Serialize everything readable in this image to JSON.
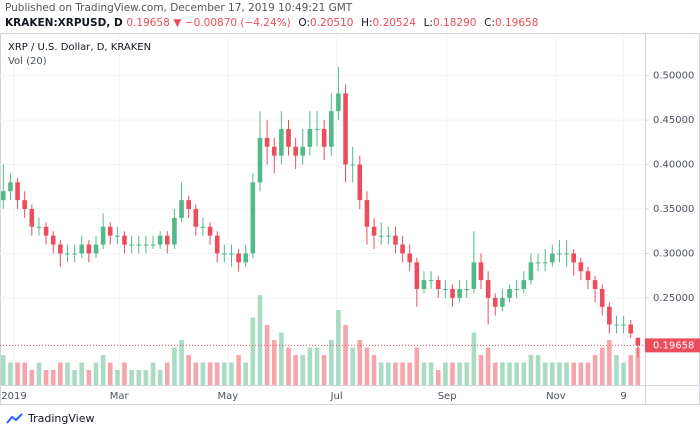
{
  "header": {
    "published": "Published on TradingView.com, December 17, 2019 10:49:21 GMT",
    "symbol": "KRAKEN:XRPUSD, D",
    "price": "0.19658",
    "change": "▼ −0.00870 (−4.24%)",
    "ohlc": [
      {
        "label": "O:",
        "value": "0.20510"
      },
      {
        "label": "H:",
        "value": "0.20524"
      },
      {
        "label": "L:",
        "value": "0.18290"
      },
      {
        "label": "C:",
        "value": "0.19658"
      }
    ]
  },
  "chart_data": {
    "type": "candlestick",
    "title": "XRP / U.S. Dollar, D, KRAKEN",
    "volume_label": "Vol (20)",
    "up_color": "#53b987",
    "down_color": "#eb4d5c",
    "grid": true,
    "ylim": [
      0.152,
      0.548
    ],
    "yticks": [
      {
        "value": 0.25,
        "label": "0.25000"
      },
      {
        "value": 0.3,
        "label": "0.30000"
      },
      {
        "value": 0.35,
        "label": "0.35000"
      },
      {
        "value": 0.4,
        "label": "0.40000"
      },
      {
        "value": 0.45,
        "label": "0.45000"
      },
      {
        "value": 0.5,
        "label": "0.50000"
      }
    ],
    "xticks": [
      {
        "value": 1.5,
        "label": "2019"
      },
      {
        "value": 16.25,
        "label": "Mar"
      },
      {
        "value": 31.5,
        "label": "May"
      },
      {
        "value": 46.75,
        "label": "Jul"
      },
      {
        "value": 62.25,
        "label": "Sep"
      },
      {
        "value": 77.5,
        "label": "Nov"
      },
      {
        "value": 87,
        "label": "9"
      }
    ],
    "last_price": {
      "value": 0.19658,
      "label": "0.19658"
    },
    "open": [
      0.36,
      0.37,
      0.38,
      0.36,
      0.35,
      0.33,
      0.33,
      0.32,
      0.31,
      0.3,
      0.3,
      0.3,
      0.31,
      0.3,
      0.31,
      0.33,
      0.32,
      0.32,
      0.31,
      0.31,
      0.31,
      0.31,
      0.31,
      0.32,
      0.31,
      0.34,
      0.36,
      0.35,
      0.33,
      0.33,
      0.32,
      0.3,
      0.3,
      0.3,
      0.29,
      0.3,
      0.38,
      0.43,
      0.42,
      0.41,
      0.44,
      0.42,
      0.41,
      0.42,
      0.44,
      0.44,
      0.42,
      0.46,
      0.48,
      0.4,
      0.4,
      0.36,
      0.33,
      0.32,
      0.32,
      0.32,
      0.31,
      0.3,
      0.29,
      0.26,
      0.27,
      0.27,
      0.26,
      0.26,
      0.25,
      0.26,
      0.26,
      0.29,
      0.27,
      0.25,
      0.24,
      0.25,
      0.26,
      0.26,
      0.27,
      0.29,
      0.29,
      0.29,
      0.3,
      0.3,
      0.3,
      0.29,
      0.28,
      0.27,
      0.26,
      0.24,
      0.22,
      0.22,
      0.22,
      0.2051
    ],
    "high": [
      0.4,
      0.39,
      0.385,
      0.37,
      0.355,
      0.34,
      0.335,
      0.325,
      0.315,
      0.31,
      0.31,
      0.32,
      0.315,
      0.32,
      0.345,
      0.335,
      0.33,
      0.325,
      0.32,
      0.32,
      0.32,
      0.32,
      0.325,
      0.325,
      0.35,
      0.38,
      0.365,
      0.355,
      0.34,
      0.335,
      0.325,
      0.31,
      0.31,
      0.305,
      0.31,
      0.39,
      0.46,
      0.45,
      0.43,
      0.46,
      0.45,
      0.43,
      0.44,
      0.46,
      0.46,
      0.45,
      0.48,
      0.51,
      0.49,
      0.42,
      0.41,
      0.37,
      0.34,
      0.335,
      0.33,
      0.33,
      0.32,
      0.31,
      0.295,
      0.28,
      0.28,
      0.275,
      0.27,
      0.265,
      0.27,
      0.27,
      0.325,
      0.3,
      0.28,
      0.255,
      0.26,
      0.265,
      0.27,
      0.28,
      0.3,
      0.3,
      0.305,
      0.31,
      0.315,
      0.315,
      0.305,
      0.295,
      0.285,
      0.275,
      0.265,
      0.245,
      0.23,
      0.23,
      0.225,
      0.20524
    ],
    "low": [
      0.35,
      0.36,
      0.35,
      0.34,
      0.32,
      0.32,
      0.31,
      0.3,
      0.285,
      0.29,
      0.29,
      0.295,
      0.29,
      0.295,
      0.305,
      0.31,
      0.31,
      0.3,
      0.3,
      0.3,
      0.3,
      0.305,
      0.305,
      0.3,
      0.305,
      0.335,
      0.34,
      0.32,
      0.32,
      0.31,
      0.29,
      0.29,
      0.285,
      0.28,
      0.285,
      0.295,
      0.37,
      0.4,
      0.39,
      0.4,
      0.41,
      0.395,
      0.4,
      0.41,
      0.42,
      0.405,
      0.41,
      0.45,
      0.38,
      0.38,
      0.35,
      0.31,
      0.305,
      0.31,
      0.31,
      0.3,
      0.29,
      0.28,
      0.24,
      0.255,
      0.26,
      0.25,
      0.25,
      0.24,
      0.245,
      0.25,
      0.255,
      0.26,
      0.22,
      0.23,
      0.235,
      0.245,
      0.25,
      0.255,
      0.265,
      0.28,
      0.28,
      0.285,
      0.29,
      0.285,
      0.275,
      0.27,
      0.26,
      0.245,
      0.23,
      0.21,
      0.21,
      0.21,
      0.205,
      0.1829
    ],
    "close": [
      0.37,
      0.38,
      0.36,
      0.35,
      0.33,
      0.33,
      0.32,
      0.31,
      0.3,
      0.3,
      0.3,
      0.31,
      0.3,
      0.31,
      0.33,
      0.32,
      0.32,
      0.31,
      0.31,
      0.31,
      0.31,
      0.31,
      0.32,
      0.31,
      0.34,
      0.36,
      0.35,
      0.33,
      0.33,
      0.32,
      0.3,
      0.3,
      0.3,
      0.29,
      0.3,
      0.38,
      0.43,
      0.42,
      0.41,
      0.44,
      0.42,
      0.41,
      0.42,
      0.44,
      0.44,
      0.42,
      0.46,
      0.48,
      0.4,
      0.4,
      0.36,
      0.33,
      0.32,
      0.32,
      0.32,
      0.31,
      0.3,
      0.29,
      0.26,
      0.27,
      0.27,
      0.26,
      0.26,
      0.25,
      0.26,
      0.26,
      0.29,
      0.27,
      0.25,
      0.24,
      0.25,
      0.26,
      0.26,
      0.27,
      0.29,
      0.29,
      0.29,
      0.3,
      0.3,
      0.3,
      0.29,
      0.28,
      0.27,
      0.26,
      0.24,
      0.22,
      0.22,
      0.22,
      0.21,
      0.19658
    ],
    "volume": [
      4,
      3,
      3,
      3,
      2,
      3,
      2,
      2,
      3,
      3,
      2,
      3,
      2,
      3,
      4,
      3,
      2,
      3,
      2,
      2,
      2,
      3,
      2,
      3,
      5,
      6,
      4,
      3,
      3,
      3,
      3,
      3,
      3,
      4,
      3,
      9,
      12,
      8,
      6,
      7,
      5,
      4,
      4,
      5,
      5,
      4,
      6,
      10,
      8,
      5,
      6,
      5,
      4,
      3,
      3,
      3,
      3,
      3,
      5,
      3,
      3,
      2,
      3,
      3,
      3,
      3,
      7,
      4,
      5,
      3,
      3,
      3,
      3,
      3,
      4,
      4,
      3,
      3,
      3,
      3,
      3,
      3,
      3,
      4,
      5,
      6,
      4,
      3,
      4,
      5
    ]
  },
  "footer": {
    "brand": "TradingView"
  }
}
